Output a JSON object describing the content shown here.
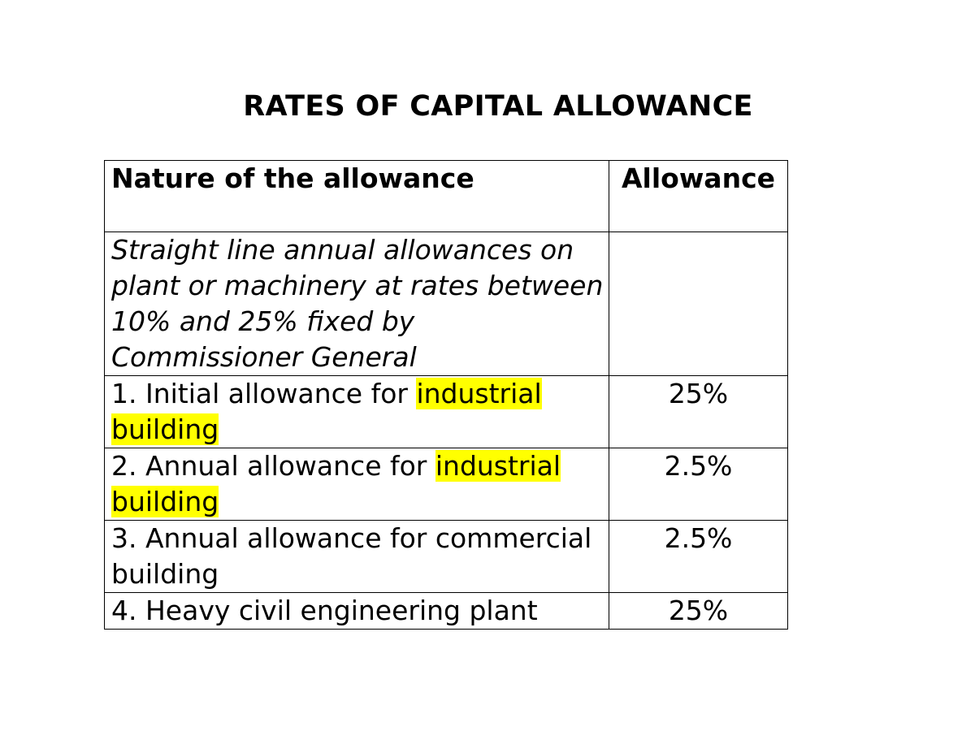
{
  "title": "RATES OF CAPITAL ALLOWANCE",
  "table": {
    "headers": {
      "nature": "Nature of the allowance",
      "rate": "Allowance"
    },
    "intro": "Straight line annual allowances on plant or machinery at rates between 10% and 25% fixed by Commissioner General",
    "rows": [
      {
        "label_before": "1. Initial allowance for ",
        "label_highlight": "industrial building",
        "rate": "25%"
      },
      {
        "label_before": "2. Annual allowance for ",
        "label_highlight": "industrial building",
        "rate": "2.5%"
      },
      {
        "label_before": "3. Annual allowance for commercial building",
        "label_highlight": "",
        "rate": "2.5%"
      },
      {
        "label_before": "4. Heavy civil engineering plant",
        "label_highlight": "",
        "rate": "25%"
      }
    ]
  },
  "colors": {
    "highlight": "#ffff00",
    "text": "#000000",
    "border": "#000000"
  }
}
